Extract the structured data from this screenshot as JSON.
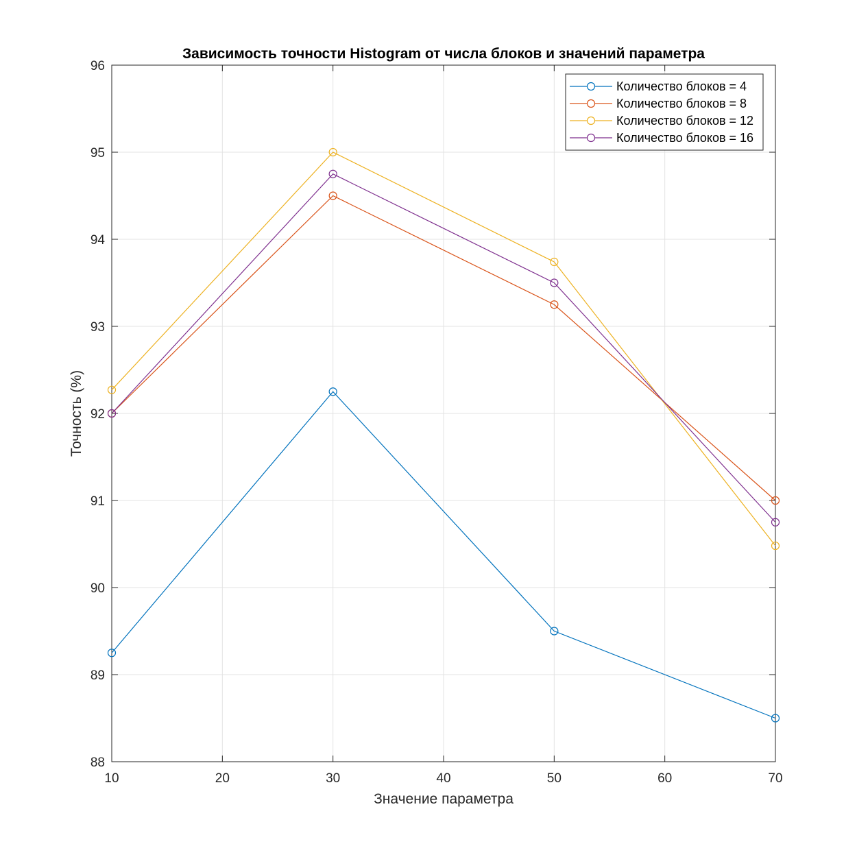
{
  "chart_data": {
    "type": "line",
    "title": "Зависимость точности Histogram от числа блоков и значений параметра",
    "xlabel": "Значение параметра",
    "ylabel": "Точность (%)",
    "xlim": [
      10,
      70
    ],
    "ylim": [
      88,
      96
    ],
    "xticks": [
      "10",
      "20",
      "30",
      "40",
      "50",
      "60",
      "70"
    ],
    "yticks": [
      "88",
      "89",
      "90",
      "91",
      "92",
      "93",
      "94",
      "95",
      "96"
    ],
    "grid": true,
    "legend_position": "top-right",
    "marker": "circle",
    "x": [
      10,
      30,
      50,
      70
    ],
    "series": [
      {
        "name": "Количество блоков = 4",
        "color": "#0072BD",
        "values": [
          89.25,
          92.25,
          89.5,
          88.5
        ]
      },
      {
        "name": "Количество блоков = 8",
        "color": "#D95319",
        "values": [
          92.0,
          94.5,
          93.25,
          91.0
        ]
      },
      {
        "name": "Количество блоков = 12",
        "color": "#EDB120",
        "values": [
          92.27,
          95.0,
          93.74,
          90.48
        ]
      },
      {
        "name": "Количество блоков = 16",
        "color": "#7E2F8E",
        "values": [
          92.0,
          94.75,
          93.5,
          90.75
        ]
      }
    ]
  }
}
